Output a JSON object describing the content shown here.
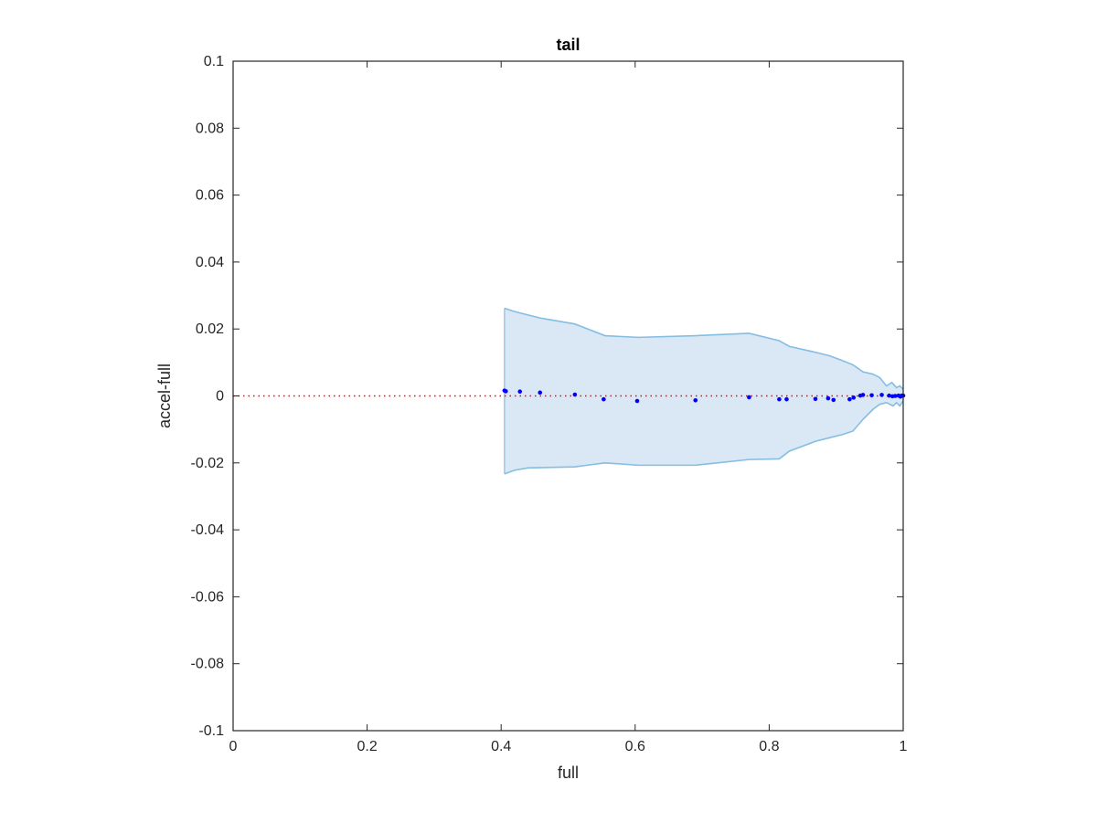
{
  "chart_data": {
    "type": "scatter",
    "title": "tail",
    "xlabel": "full",
    "ylabel": "accel-full",
    "xlim": [
      0,
      1
    ],
    "ylim": [
      -0.1,
      0.1
    ],
    "x_ticks": [
      0,
      0.2,
      0.4,
      0.6,
      0.8,
      1
    ],
    "x_tick_labels": [
      "0",
      "0.2",
      "0.4",
      "0.6",
      "0.8",
      "1"
    ],
    "y_ticks": [
      0.1,
      0.08,
      0.06,
      0.04,
      0.02,
      0,
      -0.02,
      -0.04,
      -0.06,
      -0.08,
      -0.1
    ],
    "y_tick_labels": [
      "0.1",
      "0.08",
      "0.06",
      "0.04",
      "0.02",
      "0",
      "-0.02",
      "-0.04",
      "-0.06",
      "-0.08",
      "-0.1"
    ],
    "grid": false,
    "reference_line": {
      "y": 0,
      "color": "#ff0000",
      "style": "dotted"
    },
    "band": {
      "fill_color": "#d9e8f4",
      "edge_color": "#85bde3",
      "upper": [
        [
          0.405,
          0.0262
        ],
        [
          0.42,
          0.0252
        ],
        [
          0.46,
          0.0232
        ],
        [
          0.51,
          0.0215
        ],
        [
          0.555,
          0.018
        ],
        [
          0.605,
          0.0175
        ],
        [
          0.69,
          0.018
        ],
        [
          0.77,
          0.0187
        ],
        [
          0.815,
          0.0165
        ],
        [
          0.83,
          0.0148
        ],
        [
          0.87,
          0.013
        ],
        [
          0.89,
          0.012
        ],
        [
          0.91,
          0.0105
        ],
        [
          0.925,
          0.0093
        ],
        [
          0.94,
          0.0072
        ],
        [
          0.955,
          0.0065
        ],
        [
          0.965,
          0.0055
        ],
        [
          0.975,
          0.003
        ],
        [
          0.983,
          0.004
        ],
        [
          0.99,
          0.0025
        ],
        [
          0.995,
          0.003
        ],
        [
          1.0,
          0.002
        ]
      ],
      "lower": [
        [
          0.405,
          -0.0233
        ],
        [
          0.42,
          -0.0222
        ],
        [
          0.44,
          -0.0215
        ],
        [
          0.51,
          -0.0212
        ],
        [
          0.555,
          -0.02
        ],
        [
          0.605,
          -0.0207
        ],
        [
          0.69,
          -0.0207
        ],
        [
          0.77,
          -0.019
        ],
        [
          0.815,
          -0.0188
        ],
        [
          0.83,
          -0.0165
        ],
        [
          0.87,
          -0.0135
        ],
        [
          0.89,
          -0.0125
        ],
        [
          0.91,
          -0.0115
        ],
        [
          0.925,
          -0.0105
        ],
        [
          0.94,
          -0.007
        ],
        [
          0.955,
          -0.004
        ],
        [
          0.965,
          -0.0025
        ],
        [
          0.975,
          -0.002
        ],
        [
          0.985,
          -0.003
        ],
        [
          0.99,
          -0.002
        ],
        [
          0.995,
          -0.003
        ],
        [
          1.0,
          -0.0015
        ]
      ]
    },
    "series": [
      {
        "color": "#0000ff",
        "points": [
          [
            0.405,
            0.0016
          ],
          [
            0.407,
            0.0014
          ],
          [
            0.428,
            0.0013
          ],
          [
            0.458,
            0.001
          ],
          [
            0.51,
            0.0004
          ],
          [
            0.553,
            -0.001
          ],
          [
            0.603,
            -0.0015
          ],
          [
            0.69,
            -0.0013
          ],
          [
            0.77,
            -0.0004
          ],
          [
            0.815,
            -0.001
          ],
          [
            0.826,
            -0.001
          ],
          [
            0.869,
            -0.0009
          ],
          [
            0.888,
            -0.0007
          ],
          [
            0.896,
            -0.0012
          ],
          [
            0.92,
            -0.001
          ],
          [
            0.926,
            -0.0005
          ],
          [
            0.936,
            0.0001
          ],
          [
            0.94,
            0.0003
          ],
          [
            0.953,
            0.0002
          ],
          [
            0.968,
            0.0003
          ],
          [
            0.979,
            0.0001
          ],
          [
            0.984,
            -0.0001
          ],
          [
            0.988,
            0.0
          ],
          [
            0.993,
            0.0001
          ],
          [
            0.996,
            -0.0002
          ],
          [
            0.998,
            0.0001
          ],
          [
            1.0,
            0.0001
          ]
        ]
      }
    ]
  }
}
